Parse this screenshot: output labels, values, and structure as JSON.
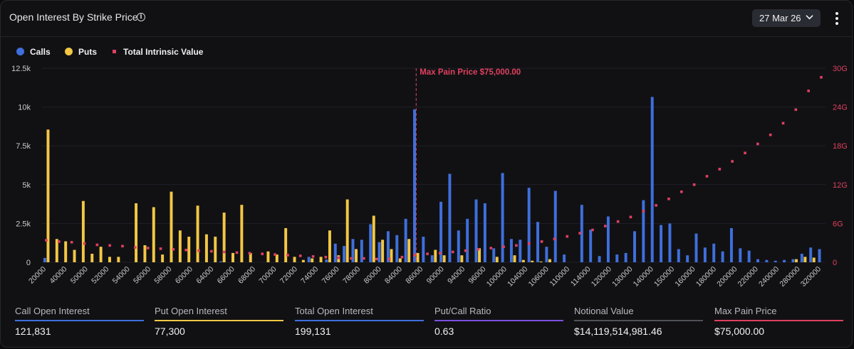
{
  "header": {
    "title": "Open Interest By Strike Price",
    "info_icon": "info-icon",
    "date_selected": "27 Mar 26",
    "menu_icon": "vertical-ellipsis-icon"
  },
  "legend": {
    "calls": "Calls",
    "puts": "Puts",
    "intrinsic": "Total Intrinsic Value"
  },
  "colors": {
    "calls": "#3f6fdc",
    "puts": "#f2c744",
    "intrinsic": "#e0405e",
    "ratio": "#7b4fe0",
    "notional": "#505258"
  },
  "chart_data": {
    "type": "bar",
    "x_tick_labels": [
      "20000",
      "40000",
      "50000",
      "52000",
      "54000",
      "56000",
      "58000",
      "60000",
      "64000",
      "66000",
      "68000",
      "70000",
      "72000",
      "74000",
      "76000",
      "78000",
      "80000",
      "84000",
      "86000",
      "90000",
      "94000",
      "96000",
      "100000",
      "104000",
      "106000",
      "110000",
      "114000",
      "120000",
      "130000",
      "140000",
      "150000",
      "160000",
      "180000",
      "200000",
      "220000",
      "240000",
      "280000",
      "320000"
    ],
    "y_left": {
      "ticks": [
        "0",
        "2.5k",
        "5k",
        "7.5k",
        "10k",
        "12.5k"
      ],
      "ylim": [
        0,
        12500
      ]
    },
    "y_right": {
      "ticks": [
        "0",
        "6G",
        "12G",
        "18G",
        "24G",
        "30G"
      ],
      "ylim": [
        0,
        30
      ]
    },
    "series": [
      {
        "name": "Calls",
        "values": [
          280,
          0,
          0,
          0,
          0,
          0,
          0,
          0,
          0,
          0,
          0,
          0,
          0,
          0,
          0,
          0,
          0,
          0,
          0,
          0,
          60,
          0,
          0,
          0,
          0,
          0,
          0,
          0,
          0,
          0,
          350,
          0,
          180,
          1200,
          1050,
          1500,
          1450,
          2450,
          1300,
          2000,
          1750,
          2800,
          9850,
          1650,
          450,
          3900,
          5700,
          2050,
          2800,
          4050,
          3800,
          900,
          5750,
          1500,
          1450,
          4800,
          2600,
          1000,
          4600,
          500,
          0,
          3700,
          2100,
          400,
          2950,
          500,
          600,
          2000,
          4000,
          10650,
          2400,
          2500,
          850,
          450,
          1850,
          950,
          1200,
          700,
          2200,
          900,
          750,
          200,
          150,
          100,
          150,
          200,
          550,
          950,
          850
        ]
      },
      {
        "name": "Puts",
        "values": [
          8550,
          1500,
          1350,
          800,
          3950,
          550,
          1000,
          350,
          350,
          0,
          3800,
          1100,
          3550,
          500,
          4550,
          2050,
          1650,
          3650,
          1800,
          1650,
          3200,
          600,
          3700,
          600,
          0,
          700,
          500,
          2200,
          350,
          150,
          250,
          350,
          2050,
          450,
          4050,
          850,
          0,
          3000,
          1450,
          850,
          250,
          1500,
          600,
          0,
          800,
          450,
          0,
          450,
          0,
          900,
          0,
          350,
          0,
          450,
          150,
          100,
          50,
          200,
          0,
          0,
          0,
          0,
          0,
          0,
          0,
          0,
          0,
          0,
          0,
          0,
          0,
          0,
          0,
          0,
          0,
          0,
          0,
          0,
          0,
          0,
          0,
          0,
          0,
          0,
          0,
          200,
          350,
          300
        ]
      },
      {
        "name": "Total Intrinsic Value",
        "unit": "G",
        "values": [
          3.4,
          3.2,
          3.1,
          2.9,
          2.7,
          2.6,
          2.5,
          2.3,
          2.2,
          2.1,
          2.0,
          1.9,
          1.8,
          1.7,
          1.6,
          1.5,
          1.4,
          1.3,
          1.2,
          1.1,
          1.0,
          0.9,
          0.8,
          0.7,
          0.6,
          0.6,
          0.5,
          0.5,
          0.8,
          1.1,
          1.3,
          1.4,
          1.6,
          1.8,
          2.0,
          2.2,
          2.4,
          2.6,
          2.9,
          3.2,
          3.6,
          4.0,
          4.5,
          5.0,
          5.6,
          6.3,
          7.0,
          7.9,
          8.8,
          9.8,
          10.9,
          12.0,
          13.3,
          14.4,
          15.6,
          16.9,
          18.3,
          19.7,
          21.5,
          23.6,
          26.5,
          28.6
        ]
      }
    ],
    "annotation": {
      "label": "Max Pain Price $75,000.00",
      "bar_index": 42
    }
  },
  "stats": [
    {
      "label": "Call Open Interest",
      "value": "121,831",
      "color": "#3f6fdc"
    },
    {
      "label": "Put Open Interest",
      "value": "77,300",
      "color": "#f2c744"
    },
    {
      "label": "Total Open Interest",
      "value": "199,131",
      "color": "#3f6fdc"
    },
    {
      "label": "Put/Call Ratio",
      "value": "0.63",
      "color": "#7b4fe0"
    },
    {
      "label": "Notional Value",
      "value": "$14,119,514,981.46",
      "color": "#505258"
    },
    {
      "label": "Max Pain Price",
      "value": "$75,000.00",
      "color": "#e0405e"
    }
  ]
}
